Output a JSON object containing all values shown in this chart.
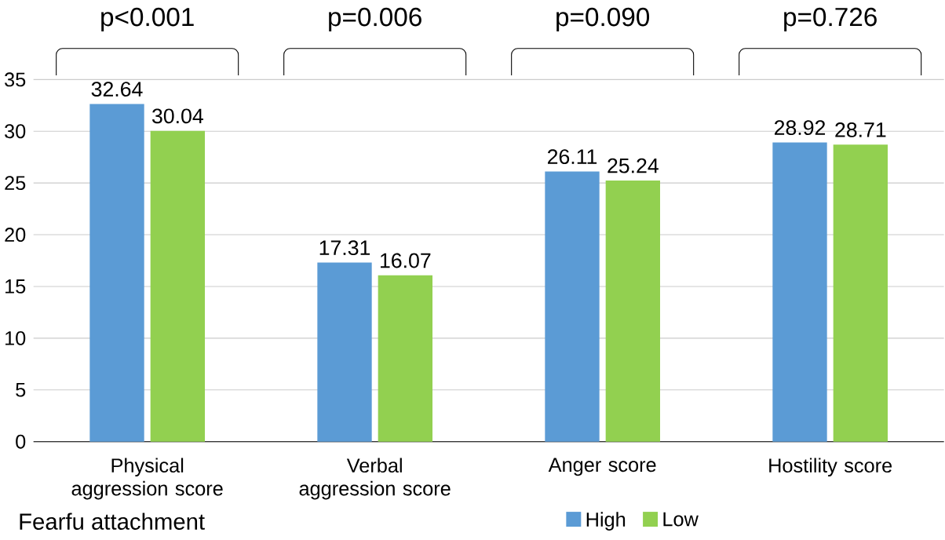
{
  "chart_data": {
    "type": "bar",
    "categories": [
      "Physical aggression score",
      "Verbal aggression score",
      "Anger score",
      "Hostility score"
    ],
    "series": [
      {
        "name": "High",
        "color": "#5b9bd5",
        "values": [
          32.64,
          17.31,
          26.11,
          28.92
        ]
      },
      {
        "name": "Low",
        "color": "#92d050",
        "values": [
          30.04,
          16.07,
          25.24,
          28.71
        ]
      }
    ],
    "ylim": [
      0,
      35
    ],
    "yticks": [
      0,
      5,
      10,
      15,
      20,
      25,
      30,
      35
    ],
    "grid": "y",
    "data_labels": true,
    "legend": "bottom",
    "legend_title": "Fearfu attachment",
    "annotations": [
      "p<0.001",
      "p=0.006",
      "p=0.090",
      "p=0.726"
    ]
  }
}
